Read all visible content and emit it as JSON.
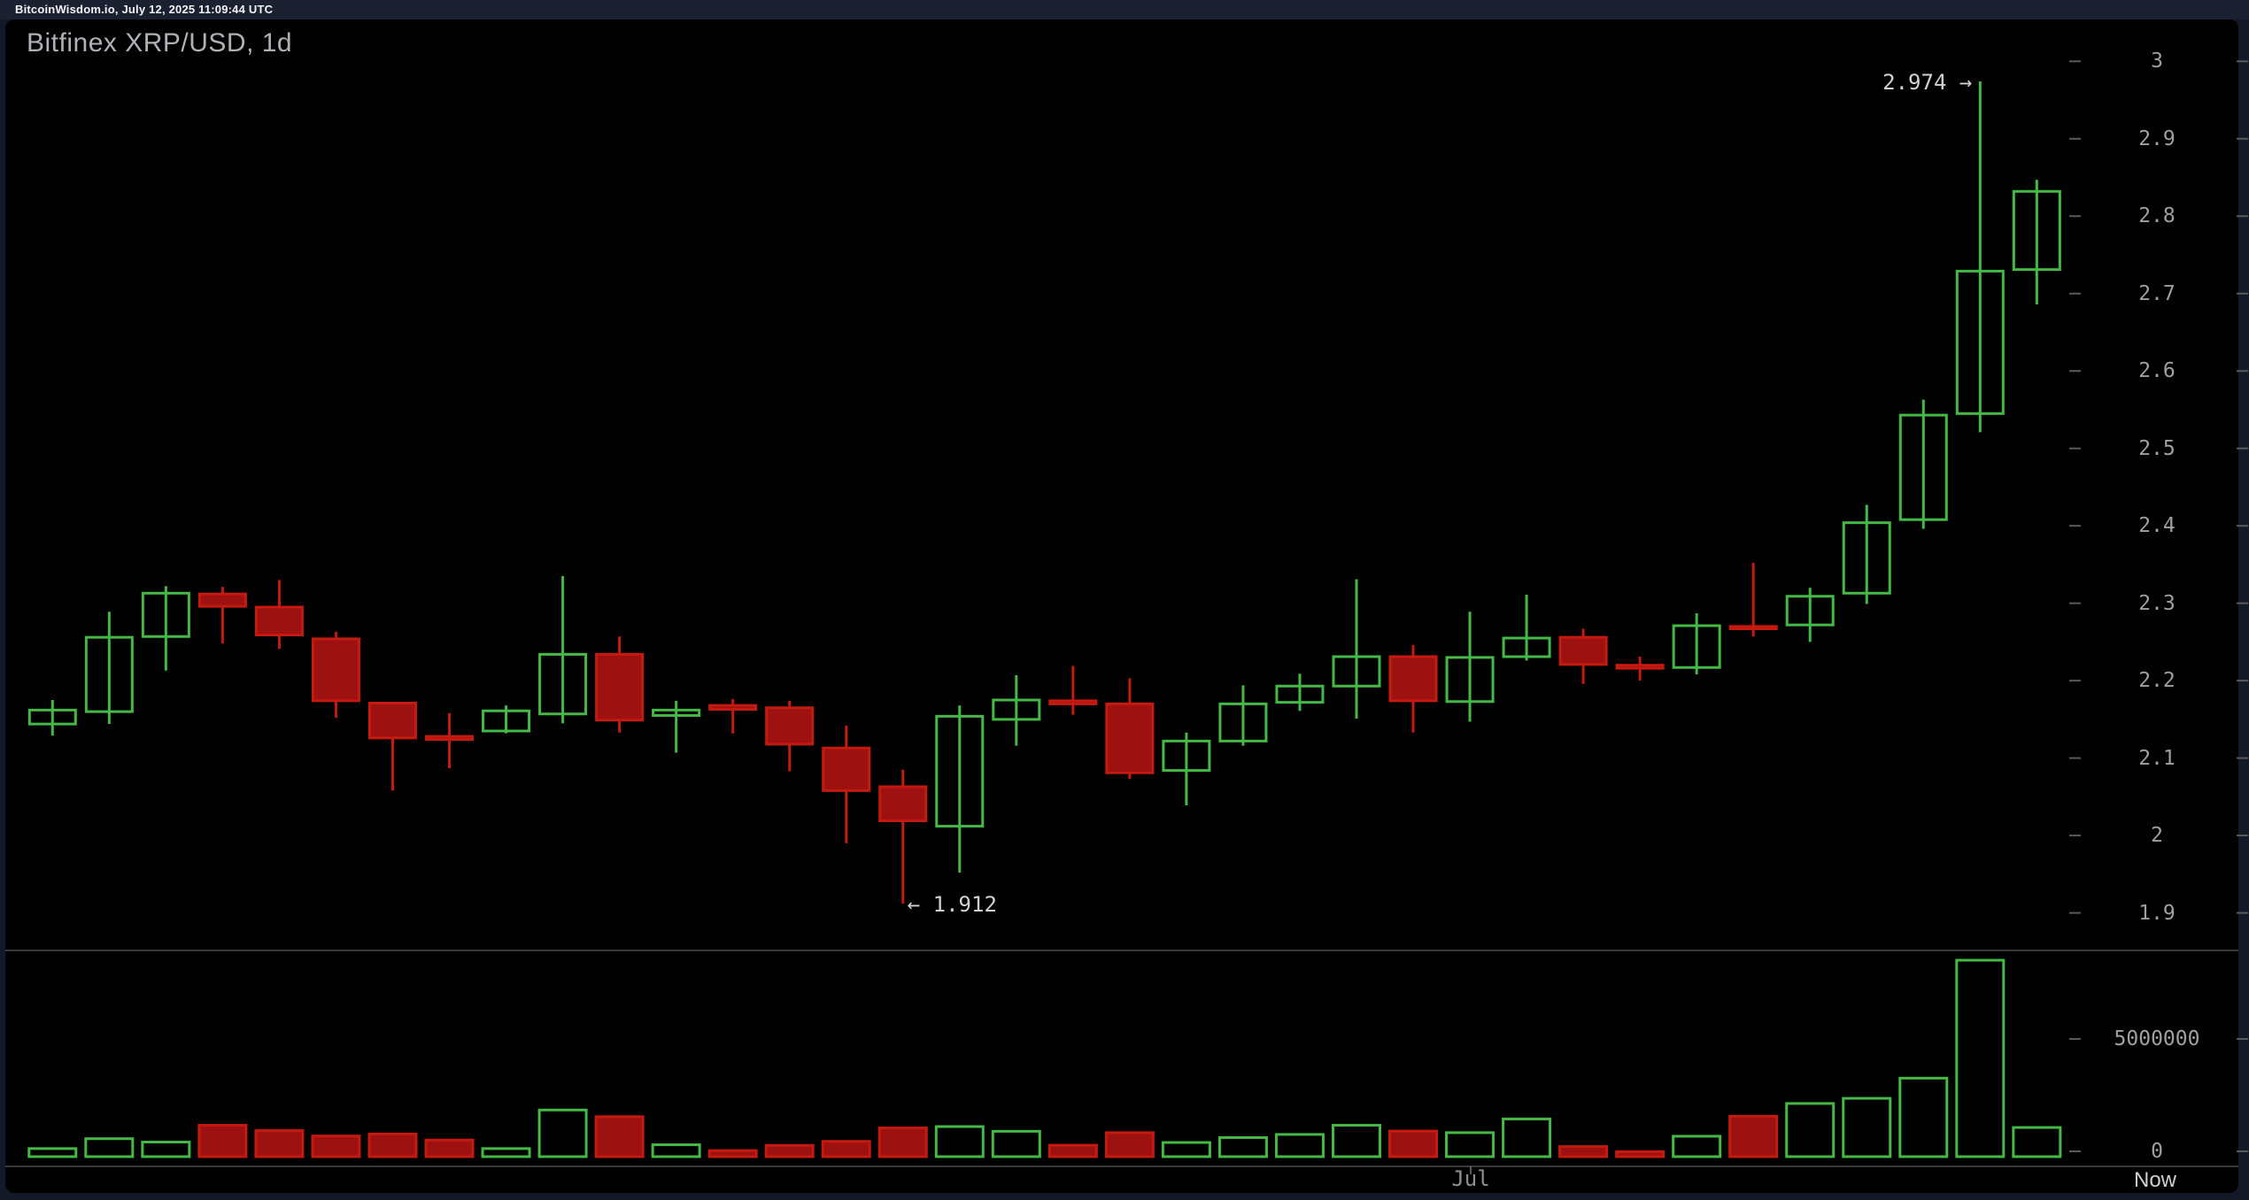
{
  "header": {
    "title": "BitcoinWisdom.io, July 12, 2025 11:09:44 UTC"
  },
  "chart": {
    "title": "Bitfinex XRP/USD, 1d"
  },
  "colors": {
    "page_bg": "#141927",
    "header_bg": "#1b2130",
    "header_text": "#f2f3f5",
    "panel_bg": "#000000",
    "title_text": "#aeb1b5",
    "up": "#45b945",
    "down_border": "#c41a10",
    "down_fill": "#9d1111",
    "axis_label": "#a0a0a0",
    "tick_dash": "#5a5a5a",
    "separator": "#3a3a3a",
    "annotation_text": "#d2d2d2",
    "jul_text": "#8f8f8f",
    "now_text": "#cfcfcf"
  },
  "price_axis": {
    "tick_labels": [
      "3",
      "2.9",
      "2.8",
      "2.7",
      "2.6",
      "2.5",
      "2.4",
      "2.3",
      "2.2",
      "2.1",
      "2",
      "1.9"
    ]
  },
  "volume_axis": {
    "tick_labels": [
      "5000000",
      "0"
    ],
    "tick_values": [
      5000000,
      0
    ]
  },
  "time_axis": {
    "month_label": "Jul",
    "now_label": "Now"
  },
  "annotations": {
    "high": {
      "text": "2.974 →",
      "price": 2.974,
      "candle_index": 34
    },
    "low": {
      "text": "← 1.912",
      "price": 1.912,
      "candle_index": 15
    }
  },
  "chart_data": {
    "type": "candlestick-with-volume",
    "title": "Bitfinex XRP/USD, 1d",
    "exchange": "Bitfinex",
    "pair": "XRP/USD",
    "interval": "1d",
    "ylabel": "",
    "price_ylim": [
      1.87,
      3.05
    ],
    "volume_ylim": [
      0,
      10500000
    ],
    "grid": false,
    "legend": "none",
    "high_annotation": 2.974,
    "low_annotation": 1.912,
    "candles": [
      {
        "o": 2.144,
        "h": 2.175,
        "l": 2.129,
        "c": 2.162,
        "v": 360000
      },
      {
        "o": 2.16,
        "h": 2.289,
        "l": 2.144,
        "c": 2.256,
        "v": 800000
      },
      {
        "o": 2.257,
        "h": 2.322,
        "l": 2.213,
        "c": 2.313,
        "v": 650000
      },
      {
        "o": 2.312,
        "h": 2.321,
        "l": 2.248,
        "c": 2.296,
        "v": 1400000
      },
      {
        "o": 2.295,
        "h": 2.33,
        "l": 2.241,
        "c": 2.259,
        "v": 1160000
      },
      {
        "o": 2.254,
        "h": 2.263,
        "l": 2.152,
        "c": 2.174,
        "v": 920000
      },
      {
        "o": 2.171,
        "h": 2.172,
        "l": 2.058,
        "c": 2.126,
        "v": 1010000
      },
      {
        "o": 2.128,
        "h": 2.158,
        "l": 2.087,
        "c": 2.124,
        "v": 740000
      },
      {
        "o": 2.135,
        "h": 2.168,
        "l": 2.132,
        "c": 2.161,
        "v": 360000
      },
      {
        "o": 2.157,
        "h": 2.335,
        "l": 2.145,
        "c": 2.234,
        "v": 2080000
      },
      {
        "o": 2.234,
        "h": 2.257,
        "l": 2.133,
        "c": 2.149,
        "v": 1780000
      },
      {
        "o": 2.155,
        "h": 2.174,
        "l": 2.107,
        "c": 2.162,
        "v": 530000
      },
      {
        "o": 2.168,
        "h": 2.176,
        "l": 2.132,
        "c": 2.163,
        "v": 270000
      },
      {
        "o": 2.165,
        "h": 2.174,
        "l": 2.083,
        "c": 2.118,
        "v": 500000
      },
      {
        "o": 2.113,
        "h": 2.142,
        "l": 1.99,
        "c": 2.058,
        "v": 680000
      },
      {
        "o": 2.063,
        "h": 2.085,
        "l": 1.912,
        "c": 2.019,
        "v": 1280000
      },
      {
        "o": 2.012,
        "h": 2.168,
        "l": 1.952,
        "c": 2.154,
        "v": 1340000
      },
      {
        "o": 2.15,
        "h": 2.207,
        "l": 2.116,
        "c": 2.175,
        "v": 1130000
      },
      {
        "o": 2.174,
        "h": 2.219,
        "l": 2.156,
        "c": 2.17,
        "v": 510000
      },
      {
        "o": 2.17,
        "h": 2.203,
        "l": 2.073,
        "c": 2.081,
        "v": 1070000
      },
      {
        "o": 2.084,
        "h": 2.133,
        "l": 2.039,
        "c": 2.122,
        "v": 630000
      },
      {
        "o": 2.122,
        "h": 2.194,
        "l": 2.116,
        "c": 2.17,
        "v": 850000
      },
      {
        "o": 2.172,
        "h": 2.209,
        "l": 2.161,
        "c": 2.193,
        "v": 990000
      },
      {
        "o": 2.193,
        "h": 2.331,
        "l": 2.151,
        "c": 2.231,
        "v": 1400000
      },
      {
        "o": 2.231,
        "h": 2.246,
        "l": 2.133,
        "c": 2.174,
        "v": 1140000
      },
      {
        "o": 2.173,
        "h": 2.289,
        "l": 2.147,
        "c": 2.23,
        "v": 1070000
      },
      {
        "o": 2.231,
        "h": 2.311,
        "l": 2.226,
        "c": 2.255,
        "v": 1680000
      },
      {
        "o": 2.256,
        "h": 2.267,
        "l": 2.196,
        "c": 2.221,
        "v": 450000
      },
      {
        "o": 2.22,
        "h": 2.231,
        "l": 2.2,
        "c": 2.216,
        "v": 220000
      },
      {
        "o": 2.217,
        "h": 2.287,
        "l": 2.208,
        "c": 2.271,
        "v": 910000
      },
      {
        "o": 2.27,
        "h": 2.352,
        "l": 2.257,
        "c": 2.267,
        "v": 1800000
      },
      {
        "o": 2.272,
        "h": 2.32,
        "l": 2.25,
        "c": 2.309,
        "v": 2370000
      },
      {
        "o": 2.313,
        "h": 2.427,
        "l": 2.299,
        "c": 2.404,
        "v": 2600000
      },
      {
        "o": 2.408,
        "h": 2.563,
        "l": 2.396,
        "c": 2.543,
        "v": 3500000
      },
      {
        "o": 2.545,
        "h": 2.974,
        "l": 2.521,
        "c": 2.729,
        "v": 8760000
      },
      {
        "o": 2.731,
        "h": 2.847,
        "l": 2.686,
        "c": 2.832,
        "v": 1300000
      }
    ]
  }
}
